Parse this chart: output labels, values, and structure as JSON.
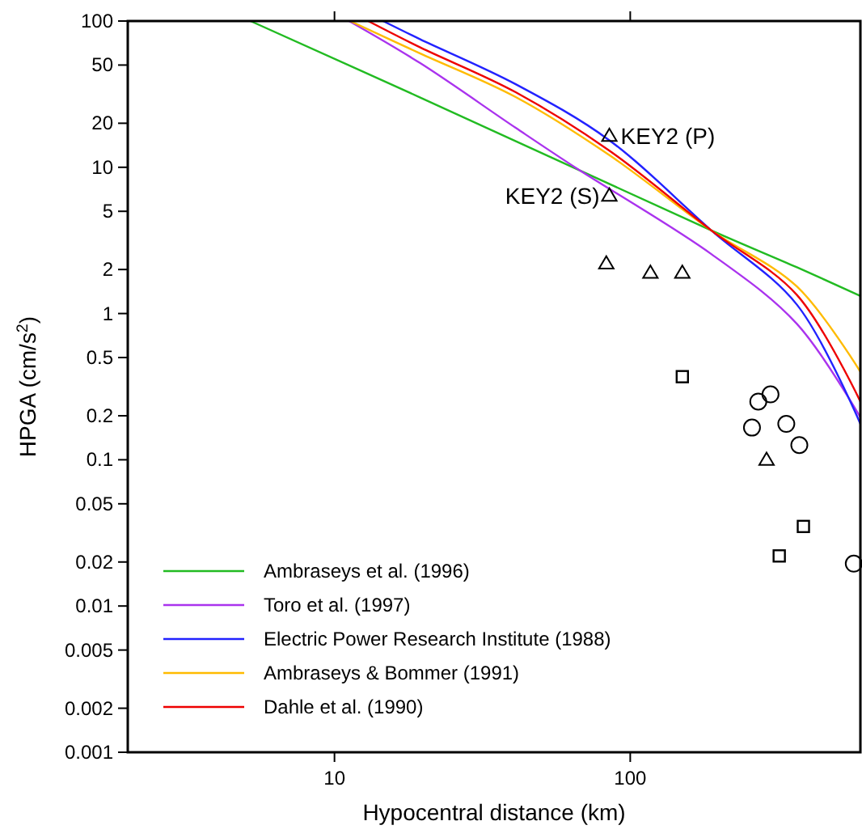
{
  "chart_data": {
    "type": "line",
    "xlabel": "Hypocentral distance (km)",
    "ylabel": "HPGA (cm/s$^{2}$)",
    "log": "xy",
    "grid": false,
    "legend": "bottom left",
    "xlim": [
      2,
      600
    ],
    "xticks": [
      10,
      100
    ],
    "ylim": [
      0.001,
      100
    ],
    "yticks": [
      0.001,
      0.002,
      0.005,
      0.01,
      0.02,
      0.05,
      0.1,
      0.2,
      0.5,
      1,
      2,
      5,
      10,
      20,
      50,
      100
    ],
    "series": [
      {
        "name": "Ambraseys et al. (1996)",
        "color": "#22bb22",
        "marker": "none",
        "x": [
          5.2,
          19.5,
          188,
          366,
          600
        ],
        "values": [
          100,
          30,
          3.7,
          2.07,
          1.32
        ]
      },
      {
        "name": "Toro et al. (1997)",
        "color": "#aa33ee",
        "marker": "none",
        "x": [
          11.2,
          19.5,
          41,
          65.8,
          188,
          366,
          600
        ],
        "values": [
          100,
          51.5,
          18.6,
          9.85,
          2.55,
          0.85,
          0.195
        ]
      },
      {
        "name": "Electric Power Research Institute (1988)",
        "color": "#2222ff",
        "marker": "none",
        "x": [
          14.6,
          19.5,
          41,
          85,
          188,
          366,
          600
        ],
        "values": [
          100,
          75,
          37,
          15.3,
          3.7,
          1.15,
          0.176
        ]
      },
      {
        "name": "Ambraseys & Bommer (1991)",
        "color": "#ffbb00",
        "marker": "none",
        "x": [
          11.3,
          19.5,
          41,
          85,
          188,
          366,
          600
        ],
        "values": [
          100,
          60,
          30.2,
          12.1,
          3.7,
          1.53,
          0.4
        ]
      },
      {
        "name": "Dahle et al. (1990)",
        "color": "#ee0000",
        "marker": "none",
        "x": [
          13.0,
          19.5,
          41,
          85,
          188,
          366,
          600
        ],
        "values": [
          100,
          66,
          32.6,
          13,
          3.7,
          1.34,
          0.25
        ]
      },
      {
        "type": "scatter",
        "color": "#000000",
        "marker": "triangle",
        "x": [
          85,
          85,
          83,
          117,
          150,
          289
        ],
        "values": [
          16.4,
          6.4,
          2.2,
          1.9,
          1.9,
          0.1
        ]
      },
      {
        "type": "scatter",
        "color": "#000000",
        "marker": "square",
        "x": [
          150,
          385,
          319
        ],
        "values": [
          0.37,
          0.035,
          0.022
        ]
      },
      {
        "type": "scatter",
        "color": "#000000",
        "marker": "circle",
        "x": [
          271,
          298,
          258,
          337,
          373,
          570
        ],
        "values": [
          0.25,
          0.28,
          0.166,
          0.176,
          0.126,
          0.0195
        ]
      }
    ],
    "annotations": [
      {
        "text": "KEY2 (P)",
        "x": 85,
        "y": 16.4
      },
      {
        "text": "KEY2 (S)",
        "x": 85,
        "y": 6.4
      }
    ]
  }
}
